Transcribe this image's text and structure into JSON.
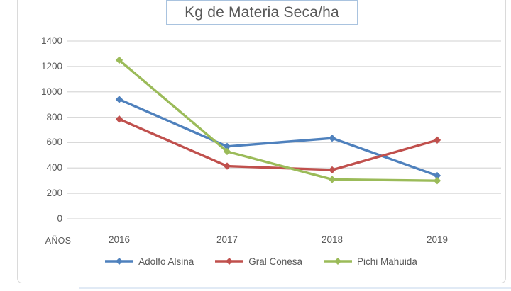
{
  "title": "Kg de Materia Seca/ha",
  "chart_data": {
    "type": "line",
    "title": "Kg de Materia Seca/ha",
    "xlabel": "AÑOS",
    "ylabel": "",
    "categories": [
      "2016",
      "2017",
      "2018",
      "2019"
    ],
    "yticks": [
      1400,
      1200,
      1000,
      800,
      600,
      400,
      200,
      0
    ],
    "ylim": [
      0,
      1400
    ],
    "grid": true,
    "legend_position": "bottom",
    "series": [
      {
        "name": "Adolfo Alsina",
        "color": "#4F81BD",
        "marker": "diamond",
        "values": [
          940,
          570,
          635,
          340
        ]
      },
      {
        "name": "Gral Conesa",
        "color": "#C0504D",
        "marker": "diamond",
        "values": [
          785,
          415,
          385,
          620
        ]
      },
      {
        "name": "Pichi Mahuida",
        "color": "#9BBB59",
        "marker": "diamond",
        "values": [
          1250,
          530,
          310,
          300
        ]
      }
    ]
  },
  "colors": {
    "gridline": "#d9d9d9",
    "frame_border": "#dadada",
    "title_border": "#a9c3df",
    "text": "#595959"
  }
}
